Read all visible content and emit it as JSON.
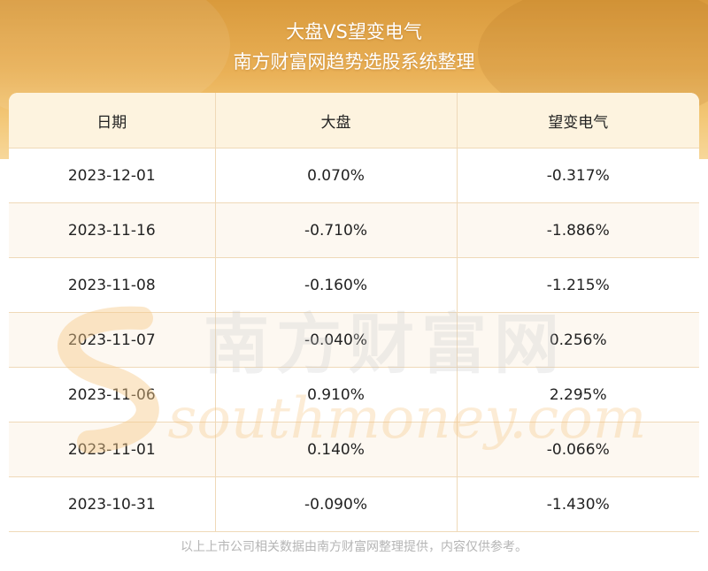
{
  "header": {
    "title": "大盘VS望变电气",
    "subtitle": "南方财富网趋势选股系统整理"
  },
  "table": {
    "columns": [
      "日期",
      "大盘",
      "望变电气"
    ],
    "rows": [
      [
        "2023-12-01",
        "0.070%",
        "-0.317%"
      ],
      [
        "2023-11-16",
        "-0.710%",
        "-1.886%"
      ],
      [
        "2023-11-08",
        "-0.160%",
        "-1.215%"
      ],
      [
        "2023-11-07",
        "-0.040%",
        "0.256%"
      ],
      [
        "2023-11-06",
        "0.910%",
        "2.295%"
      ],
      [
        "2023-11-01",
        "0.140%",
        "-0.066%"
      ],
      [
        "2023-10-31",
        "-0.090%",
        "-1.430%"
      ]
    ]
  },
  "watermark": {
    "cn": "南方财富网",
    "en": "southmoney.com"
  },
  "footer": "以上上市公司相关数据由南方财富网整理提供，内容仅供参考。",
  "colors": {
    "header_gold": "#e9b056",
    "table_header_bg": "#fdf3df",
    "grid_line": "#efd9b8"
  }
}
